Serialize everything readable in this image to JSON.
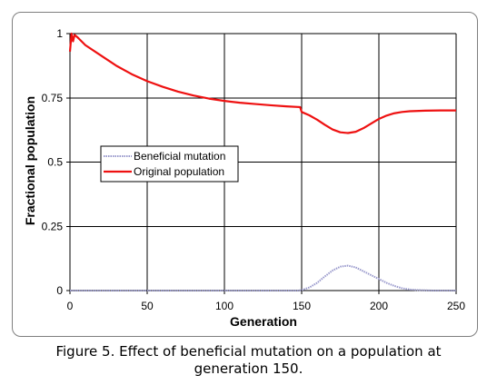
{
  "chart_data": {
    "type": "line",
    "xlabel": "Generation",
    "ylabel": "Fractional population",
    "xlim": [
      0,
      250
    ],
    "ylim": [
      0,
      1
    ],
    "x_ticks": [
      "0",
      "50",
      "100",
      "150",
      "200",
      "250"
    ],
    "y_ticks": [
      "0",
      "0.25",
      "0.5",
      "0.75",
      "1"
    ],
    "grid": true,
    "legend_position": "center-left",
    "series": [
      {
        "name": "Beneficial mutation",
        "color": "#9999cc",
        "style": "dotted",
        "points": [
          [
            0,
            0
          ],
          [
            50,
            0
          ],
          [
            100,
            0
          ],
          [
            148,
            0
          ],
          [
            150,
            0.002
          ],
          [
            155,
            0.012
          ],
          [
            160,
            0.03
          ],
          [
            165,
            0.055
          ],
          [
            170,
            0.078
          ],
          [
            175,
            0.093
          ],
          [
            180,
            0.097
          ],
          [
            185,
            0.09
          ],
          [
            190,
            0.075
          ],
          [
            195,
            0.06
          ],
          [
            200,
            0.045
          ],
          [
            205,
            0.03
          ],
          [
            210,
            0.018
          ],
          [
            215,
            0.009
          ],
          [
            220,
            0.004
          ],
          [
            225,
            0.002
          ],
          [
            230,
            0.001
          ],
          [
            235,
            0
          ],
          [
            250,
            0
          ]
        ]
      },
      {
        "name": "Original population",
        "color": "#ee1111",
        "style": "solid",
        "points": [
          [
            0,
            0.93
          ],
          [
            1,
            1.0
          ],
          [
            2,
            0.97
          ],
          [
            3,
            0.995
          ],
          [
            5,
            0.985
          ],
          [
            10,
            0.955
          ],
          [
            20,
            0.915
          ],
          [
            30,
            0.875
          ],
          [
            40,
            0.842
          ],
          [
            50,
            0.815
          ],
          [
            60,
            0.793
          ],
          [
            70,
            0.774
          ],
          [
            80,
            0.759
          ],
          [
            90,
            0.747
          ],
          [
            100,
            0.738
          ],
          [
            110,
            0.731
          ],
          [
            120,
            0.726
          ],
          [
            130,
            0.721
          ],
          [
            140,
            0.717
          ],
          [
            149,
            0.714
          ],
          [
            150,
            0.695
          ],
          [
            155,
            0.682
          ],
          [
            160,
            0.665
          ],
          [
            165,
            0.645
          ],
          [
            170,
            0.627
          ],
          [
            175,
            0.616
          ],
          [
            180,
            0.613
          ],
          [
            185,
            0.618
          ],
          [
            190,
            0.632
          ],
          [
            195,
            0.65
          ],
          [
            200,
            0.668
          ],
          [
            205,
            0.681
          ],
          [
            210,
            0.69
          ],
          [
            215,
            0.695
          ],
          [
            220,
            0.698
          ],
          [
            230,
            0.7
          ],
          [
            240,
            0.701
          ],
          [
            250,
            0.701
          ]
        ]
      }
    ]
  },
  "caption": {
    "line1": "Figure 5. Effect of beneficial mutation on a population at",
    "line2": "generation 150."
  }
}
